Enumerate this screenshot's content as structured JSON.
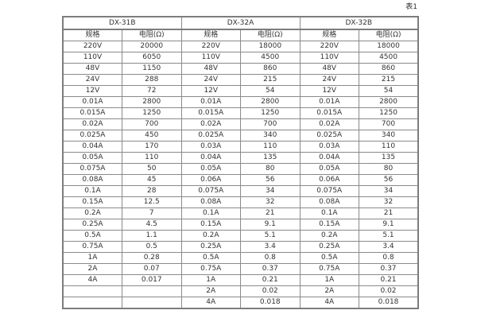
{
  "page": {
    "table_label": "表1"
  },
  "table": {
    "groups": [
      {
        "name": "DX-31B",
        "col_headers": [
          "规格",
          "电阻(Ω)"
        ]
      },
      {
        "name": "DX-32A",
        "col_headers": [
          "规格",
          "电阻(Ω)"
        ]
      },
      {
        "name": "DX-32B",
        "col_headers": [
          "规格",
          "电阻(Ω)"
        ]
      }
    ],
    "rows": [
      [
        [
          "220V",
          "20000"
        ],
        [
          "220V",
          "18000"
        ],
        [
          "220V",
          "18000"
        ]
      ],
      [
        [
          "110V",
          "6050"
        ],
        [
          "110V",
          "4500"
        ],
        [
          "110V",
          "4500"
        ]
      ],
      [
        [
          "48V",
          "1150"
        ],
        [
          "48V",
          "860"
        ],
        [
          "48V",
          "860"
        ]
      ],
      [
        [
          "24V",
          "288"
        ],
        [
          "24V",
          "215"
        ],
        [
          "24V",
          "215"
        ]
      ],
      [
        [
          "12V",
          "72"
        ],
        [
          "12V",
          "54"
        ],
        [
          "12V",
          "54"
        ]
      ],
      [
        [
          "0.01A",
          "2800"
        ],
        [
          "0.01A",
          "2800"
        ],
        [
          "0.01A",
          "2800"
        ]
      ],
      [
        [
          "0.015A",
          "1250"
        ],
        [
          "0.015A",
          "1250"
        ],
        [
          "0.015A",
          "1250"
        ]
      ],
      [
        [
          "0.02A",
          "700"
        ],
        [
          "0.02A",
          "700"
        ],
        [
          "0.02A",
          "700"
        ]
      ],
      [
        [
          "0.025A",
          "450"
        ],
        [
          "0.025A",
          "340"
        ],
        [
          "0.025A",
          "340"
        ]
      ],
      [
        [
          "0.04A",
          "170"
        ],
        [
          "0.03A",
          "110"
        ],
        [
          "0.03A",
          "110"
        ]
      ],
      [
        [
          "0.05A",
          "110"
        ],
        [
          "0.04A",
          "135"
        ],
        [
          "0.04A",
          "135"
        ]
      ],
      [
        [
          "0.075A",
          "50"
        ],
        [
          "0.05A",
          "80"
        ],
        [
          "0.05A",
          "80"
        ]
      ],
      [
        [
          "0.08A",
          "45"
        ],
        [
          "0.06A",
          "56"
        ],
        [
          "0.06A",
          "56"
        ]
      ],
      [
        [
          "0.1A",
          "28"
        ],
        [
          "0.075A",
          "34"
        ],
        [
          "0.075A",
          "34"
        ]
      ],
      [
        [
          "0.15A",
          "12.5"
        ],
        [
          "0.08A",
          "32"
        ],
        [
          "0.08A",
          "32"
        ]
      ],
      [
        [
          "0.2A",
          "7"
        ],
        [
          "0.1A",
          "21"
        ],
        [
          "0.1A",
          "21"
        ]
      ],
      [
        [
          "0.25A",
          "4.5"
        ],
        [
          "0.15A",
          "9.1"
        ],
        [
          "0.15A",
          "9.1"
        ]
      ],
      [
        [
          "0.5A",
          "1.1"
        ],
        [
          "0.2A",
          "5.1"
        ],
        [
          "0.2A",
          "5.1"
        ]
      ],
      [
        [
          "0.75A",
          "0.5"
        ],
        [
          "0.25A",
          "3.4"
        ],
        [
          "0.25A",
          "3.4"
        ]
      ],
      [
        [
          "1A",
          "0.28"
        ],
        [
          "0.5A",
          "0.8"
        ],
        [
          "0.5A",
          "0.8"
        ]
      ],
      [
        [
          "2A",
          "0.07"
        ],
        [
          "0.75A",
          "0.37"
        ],
        [
          "0.75A",
          "0.37"
        ]
      ],
      [
        [
          "4A",
          "0.017"
        ],
        [
          "1A",
          "0.21"
        ],
        [
          "1A",
          "0.21"
        ]
      ],
      [
        [
          "",
          ""
        ],
        [
          "2A",
          "0.02"
        ],
        [
          "2A",
          "0.02"
        ]
      ],
      [
        [
          "",
          ""
        ],
        [
          "4A",
          "0.018"
        ],
        [
          "4A",
          "0.018"
        ]
      ]
    ]
  }
}
